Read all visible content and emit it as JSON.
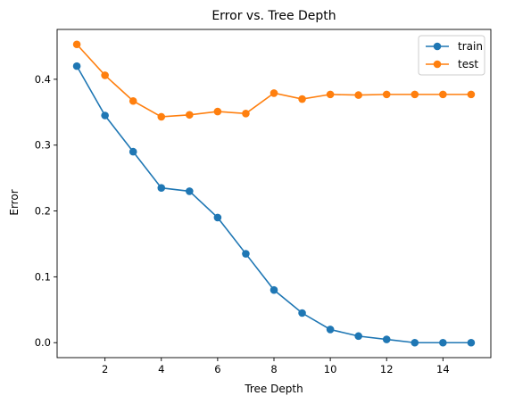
{
  "chart_data": {
    "type": "line",
    "title": "Error vs. Tree Depth",
    "xlabel": "Tree Depth",
    "ylabel": "Error",
    "xlim": [
      0.3,
      15.7
    ],
    "ylim": [
      -0.0227,
      0.4757
    ],
    "xticks": [
      2,
      4,
      6,
      8,
      10,
      12,
      14
    ],
    "xtick_labels": [
      "2",
      "4",
      "6",
      "8",
      "10",
      "12",
      "14"
    ],
    "yticks": [
      0.0,
      0.1,
      0.2,
      0.3,
      0.4
    ],
    "ytick_labels": [
      "0.0",
      "0.1",
      "0.2",
      "0.3",
      "0.4"
    ],
    "grid": false,
    "legend": "top-right",
    "x": [
      1,
      2,
      3,
      4,
      5,
      6,
      7,
      8,
      9,
      10,
      11,
      12,
      13,
      14,
      15
    ],
    "series": [
      {
        "name": "train",
        "color": "#1f77b4",
        "values": [
          0.42,
          0.345,
          0.29,
          0.235,
          0.23,
          0.19,
          0.135,
          0.08,
          0.045,
          0.02,
          0.01,
          0.005,
          0.0,
          0.0,
          0.0
        ]
      },
      {
        "name": "test",
        "color": "#ff7f0e",
        "values": [
          0.453,
          0.406,
          0.367,
          0.343,
          0.346,
          0.351,
          0.348,
          0.379,
          0.37,
          0.377,
          0.376,
          0.377,
          0.377,
          0.377,
          0.377
        ]
      }
    ]
  }
}
